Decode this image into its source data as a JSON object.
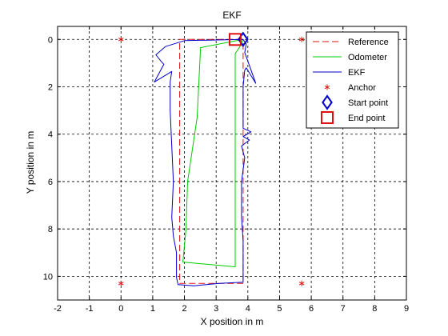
{
  "chart_data": {
    "type": "line",
    "title": "EKF",
    "xlabel": "X position in m",
    "ylabel": "Y position in m",
    "xlim": [
      -2,
      9
    ],
    "ylim": [
      0,
      10.4
    ],
    "y_direction": "reversed",
    "xticks": [
      -2,
      -1,
      0,
      1,
      2,
      3,
      4,
      5,
      6,
      7,
      8,
      9
    ],
    "yticks": [
      0,
      2,
      4,
      6,
      8,
      10
    ],
    "grid": true,
    "legend_position": "top-right",
    "series": [
      {
        "name": "Reference",
        "style": "dashed",
        "color": "#e01010",
        "x": [
          3.85,
          1.85,
          1.85,
          3.85,
          3.85
        ],
        "y": [
          0.0,
          0.0,
          10.3,
          10.3,
          0.0
        ]
      },
      {
        "name": "Odometer",
        "style": "solid",
        "color": "#00cc00",
        "x": [
          3.85,
          2.5,
          2.5,
          2.4,
          2.1,
          2.05,
          1.95,
          3.6,
          3.6,
          3.75,
          3.85
        ],
        "y": [
          0.0,
          0.35,
          0.55,
          3.3,
          6.0,
          8.0,
          9.4,
          9.6,
          0.6,
          0.3,
          0.0
        ]
      },
      {
        "name": "EKF",
        "style": "solid",
        "color": "#0000cc",
        "x": [
          3.85,
          2.0,
          1.4,
          1.1,
          1.25,
          1.35,
          1.05,
          1.6,
          1.55,
          1.55,
          1.6,
          1.65,
          1.6,
          1.65,
          1.75,
          1.75,
          1.8,
          2.3,
          3.1,
          3.85,
          3.85,
          3.85,
          3.8,
          3.8,
          3.9,
          3.8,
          4.05,
          3.85,
          4.1,
          3.85,
          3.85,
          3.9,
          3.95,
          4.25,
          3.9,
          3.95,
          3.85
        ],
        "y": [
          0.0,
          0.05,
          0.3,
          0.65,
          0.9,
          1.05,
          1.8,
          1.35,
          1.8,
          3.0,
          4.5,
          6.0,
          7.5,
          8.3,
          9.0,
          10.05,
          10.35,
          10.4,
          10.3,
          10.25,
          9.5,
          8.5,
          7.5,
          6.0,
          5.0,
          4.5,
          4.25,
          4.1,
          3.9,
          3.75,
          2.0,
          1.3,
          1.2,
          1.85,
          0.55,
          0.2,
          0.0
        ]
      },
      {
        "name": "Anchor",
        "style": "marker",
        "marker": "asterisk",
        "color": "#e01010",
        "x": [
          0,
          5.7,
          0,
          5.7
        ],
        "y": [
          0,
          0,
          10.3,
          10.3
        ]
      },
      {
        "name": "Start point",
        "style": "marker",
        "marker": "diamond",
        "color": "#0000cc",
        "x": [
          3.85
        ],
        "y": [
          0.0
        ]
      },
      {
        "name": "End point",
        "style": "marker",
        "marker": "square",
        "color": "#e01010",
        "x": [
          3.6
        ],
        "y": [
          0.0
        ]
      }
    ]
  }
}
